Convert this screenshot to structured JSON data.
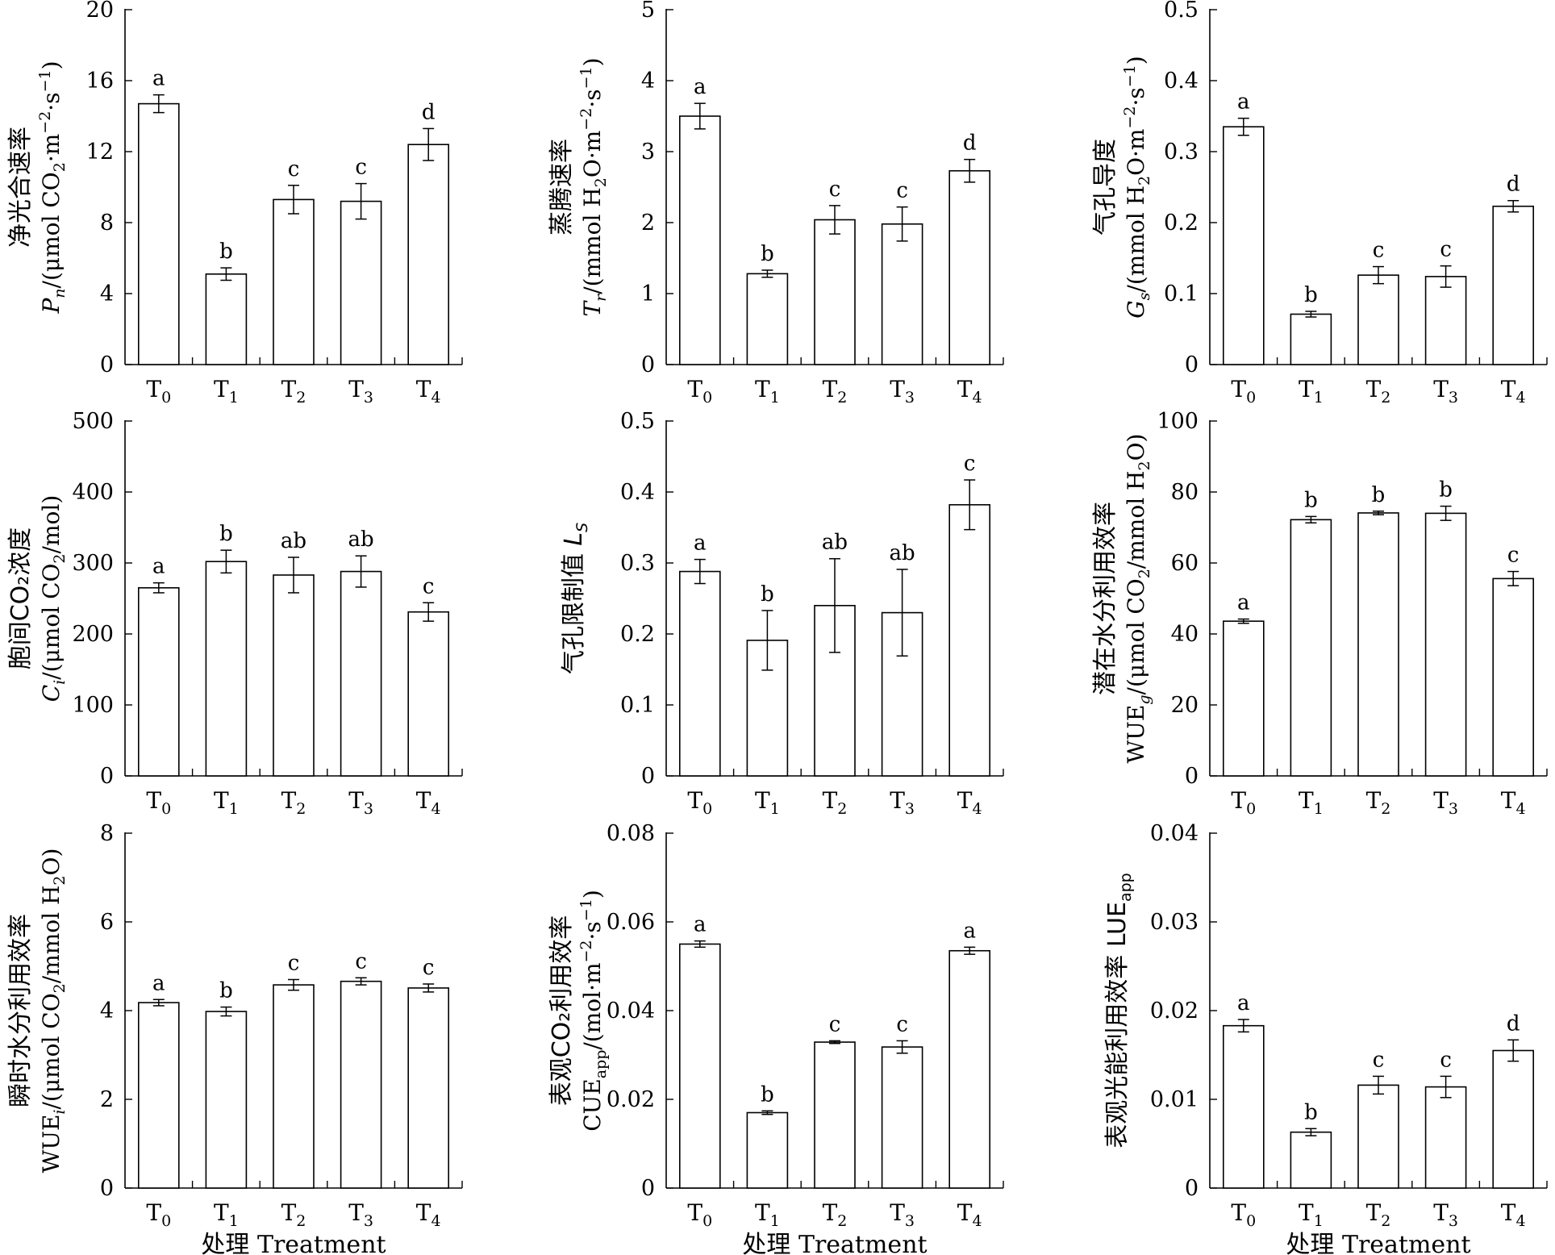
{
  "figure": {
    "treatment_label": "处理 Treatment"
  },
  "categories": [
    {
      "base": "T",
      "sub": "0"
    },
    {
      "base": "T",
      "sub": "1"
    },
    {
      "base": "T",
      "sub": "2"
    },
    {
      "base": "T",
      "sub": "3"
    },
    {
      "base": "T",
      "sub": "4"
    }
  ],
  "chart_data": [
    {
      "id": "pn",
      "type": "bar",
      "ylabel_cn": "净光合速率",
      "ylabel_parts": [
        {
          "t": "P",
          "i": true
        },
        {
          "t": "n",
          "i": true,
          "sub": true
        },
        {
          "t": "/(μmol CO"
        },
        {
          "t": "2",
          "sub": true
        },
        {
          "t": "·m"
        },
        {
          "t": "−2",
          "sup": true
        },
        {
          "t": "·s"
        },
        {
          "t": "−1",
          "sup": true
        },
        {
          "t": ")"
        }
      ],
      "ylim": [
        0,
        20
      ],
      "yticks": [
        "0",
        "4",
        "8",
        "12",
        "16",
        "20"
      ],
      "values": [
        14.7,
        5.1,
        9.3,
        9.2,
        12.4
      ],
      "errors": [
        0.5,
        0.35,
        0.8,
        1.0,
        0.9
      ],
      "letters": [
        "a",
        "b",
        "c",
        "c",
        "d"
      ],
      "show_xlabel": false
    },
    {
      "id": "tr",
      "type": "bar",
      "ylabel_cn": "蒸腾速率",
      "ylabel_parts": [
        {
          "t": "T",
          "i": true
        },
        {
          "t": "r",
          "i": true,
          "sub": true
        },
        {
          "t": "/(mmol H"
        },
        {
          "t": "2",
          "sub": true
        },
        {
          "t": "O·m"
        },
        {
          "t": "−2",
          "sup": true
        },
        {
          "t": "·s"
        },
        {
          "t": "−1",
          "sup": true
        },
        {
          "t": ")"
        }
      ],
      "ylim": [
        0,
        5
      ],
      "yticks": [
        "0",
        "1",
        "2",
        "3",
        "4",
        "5"
      ],
      "values": [
        3.5,
        1.28,
        2.04,
        1.98,
        2.73
      ],
      "errors": [
        0.18,
        0.05,
        0.2,
        0.24,
        0.16
      ],
      "letters": [
        "a",
        "b",
        "c",
        "c",
        "d"
      ],
      "show_xlabel": false
    },
    {
      "id": "gs",
      "type": "bar",
      "ylabel_cn": "气孔导度",
      "ylabel_parts": [
        {
          "t": "G",
          "i": true
        },
        {
          "t": "s",
          "i": true,
          "sub": true
        },
        {
          "t": "/(mmol H"
        },
        {
          "t": "2",
          "sub": true
        },
        {
          "t": "O·m"
        },
        {
          "t": "−2",
          "sup": true
        },
        {
          "t": "·s"
        },
        {
          "t": "−1",
          "sup": true
        },
        {
          "t": ")"
        }
      ],
      "ylim": [
        0,
        0.5
      ],
      "yticks": [
        "0",
        "0.1",
        "0.2",
        "0.3",
        "0.4",
        "0.5"
      ],
      "values": [
        0.335,
        0.071,
        0.126,
        0.124,
        0.223
      ],
      "errors": [
        0.012,
        0.004,
        0.012,
        0.015,
        0.008
      ],
      "letters": [
        "a",
        "b",
        "c",
        "c",
        "d"
      ],
      "show_xlabel": false
    },
    {
      "id": "ci",
      "type": "bar",
      "ylabel_cn": "胞间CO₂浓度",
      "ylabel_parts": [
        {
          "t": "C",
          "i": true
        },
        {
          "t": "i",
          "i": true,
          "sub": true
        },
        {
          "t": "/(μmol  CO"
        },
        {
          "t": "2",
          "sub": true
        },
        {
          "t": "/mol)"
        }
      ],
      "ylim": [
        0,
        500
      ],
      "yticks": [
        "0",
        "100",
        "200",
        "300",
        "400",
        "500"
      ],
      "values": [
        265,
        302,
        283,
        288,
        231
      ],
      "errors": [
        7,
        16,
        25,
        22,
        13
      ],
      "letters": [
        "a",
        "b",
        "ab",
        "ab",
        "c"
      ],
      "show_xlabel": false
    },
    {
      "id": "ls",
      "type": "bar",
      "ylabel_cn": "气孔限制值",
      "ylabel_parts": [
        {
          "t": " "
        },
        {
          "t": "L",
          "i": true
        },
        {
          "t": "S",
          "i": true,
          "sub": true
        }
      ],
      "ylim": [
        0,
        0.5
      ],
      "yticks": [
        "0",
        "0.1",
        "0.2",
        "0.3",
        "0.4",
        "0.5"
      ],
      "values": [
        0.288,
        0.191,
        0.24,
        0.23,
        0.382
      ],
      "errors": [
        0.017,
        0.042,
        0.066,
        0.061,
        0.035
      ],
      "letters": [
        "a",
        "b",
        "ab",
        "ab",
        "c"
      ],
      "show_xlabel": false
    },
    {
      "id": "wueg",
      "type": "bar",
      "ylabel_cn": "潜在水分利用效率",
      "ylabel_parts": [
        {
          "t": "WUE"
        },
        {
          "t": "g",
          "i": true,
          "sub": true
        },
        {
          "t": "/(μmol CO"
        },
        {
          "t": "2",
          "sub": true
        },
        {
          "t": "/mmol H"
        },
        {
          "t": "2",
          "sub": true
        },
        {
          "t": "O)"
        }
      ],
      "ylim": [
        0,
        100
      ],
      "yticks": [
        "0",
        "20",
        "40",
        "60",
        "80",
        "100"
      ],
      "values": [
        43.6,
        72.2,
        74.1,
        74.0,
        55.6
      ],
      "errors": [
        0.6,
        0.9,
        0.5,
        2.0,
        2.0
      ],
      "letters": [
        "a",
        "b",
        "b",
        "b",
        "c"
      ],
      "show_xlabel": false
    },
    {
      "id": "wuei",
      "type": "bar",
      "ylabel_cn": "瞬时水分利用效率",
      "ylabel_parts": [
        {
          "t": "WUE"
        },
        {
          "t": "i",
          "i": true,
          "sub": true
        },
        {
          "t": "/(μmol CO"
        },
        {
          "t": "2",
          "sub": true
        },
        {
          "t": "/mmol H"
        },
        {
          "t": "2",
          "sub": true
        },
        {
          "t": "O)"
        }
      ],
      "ylim": [
        0,
        8
      ],
      "yticks": [
        "0",
        "2",
        "4",
        "6",
        "8"
      ],
      "values": [
        4.18,
        3.98,
        4.58,
        4.66,
        4.51
      ],
      "errors": [
        0.07,
        0.1,
        0.12,
        0.08,
        0.09
      ],
      "letters": [
        "a",
        "b",
        "c",
        "c",
        "c"
      ],
      "show_xlabel": true
    },
    {
      "id": "cue",
      "type": "bar",
      "ylabel_cn": "表观CO₂利用效率",
      "ylabel_parts": [
        {
          "t": "CUE"
        },
        {
          "t": "app",
          "sub": true
        },
        {
          "t": "/(mol·m"
        },
        {
          "t": "−2",
          "sup": true
        },
        {
          "t": "·s"
        },
        {
          "t": "−1",
          "sup": true
        },
        {
          "t": ")"
        }
      ],
      "ylim": [
        0,
        0.08
      ],
      "yticks": [
        "0",
        "0.02",
        "0.04",
        "0.06",
        "0.08"
      ],
      "values": [
        0.055,
        0.017,
        0.0329,
        0.0318,
        0.0535
      ],
      "errors": [
        0.0007,
        0.0004,
        0.0003,
        0.0014,
        0.0008
      ],
      "letters": [
        "a",
        "b",
        "c",
        "c",
        "a"
      ],
      "show_xlabel": true
    },
    {
      "id": "lue",
      "type": "bar",
      "ylabel_cn": "表观光能利用效率",
      "ylabel_parts": [
        {
          "t": " LUE"
        },
        {
          "t": "app",
          "sub": true
        }
      ],
      "ylim": [
        0,
        0.04
      ],
      "yticks": [
        "0",
        "0.01",
        "0.02",
        "0.03",
        "0.04"
      ],
      "values": [
        0.0183,
        0.0063,
        0.0116,
        0.0114,
        0.0155
      ],
      "errors": [
        0.0007,
        0.0004,
        0.001,
        0.0012,
        0.0012
      ],
      "letters": [
        "a",
        "b",
        "c",
        "c",
        "d"
      ],
      "show_xlabel": true
    }
  ]
}
